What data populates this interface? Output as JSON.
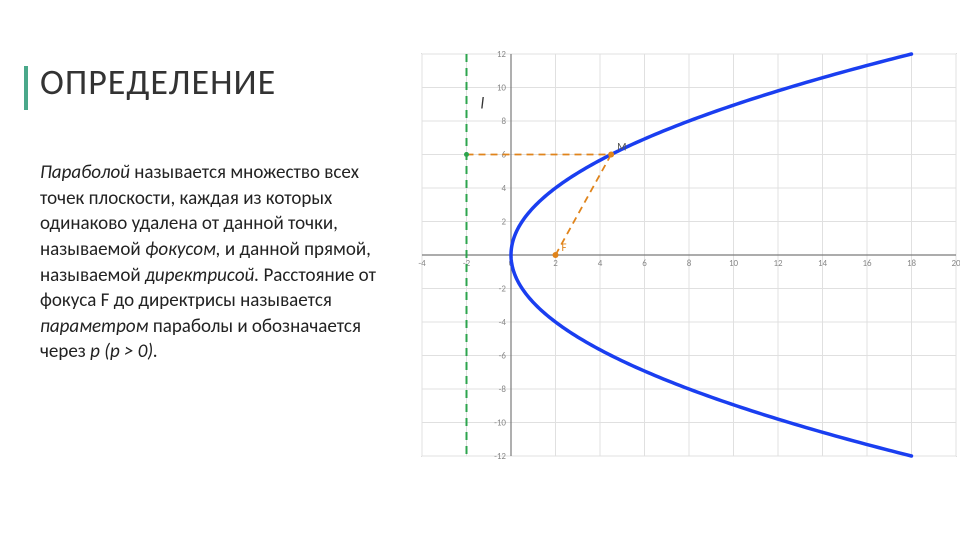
{
  "title": "ОПРЕДЕЛЕНИЕ",
  "paragraph": {
    "s1a": "Параболой",
    "s1b": " называется множество всех точек плоскости, каждая из которых одинаково удалена от данной точки, называемой ",
    "s1c": "фокусом,",
    "s1d": " и данной прямой, называемой ",
    "s1e": "директрисой.",
    "s2a": " Расстояние от фокуса F до директрисы называется ",
    "s2b": "параметром",
    "s2c": " параболы и обозначается через ",
    "s2d": "p (p > 0)."
  },
  "chart": {
    "type": "parabola",
    "xlim": [
      -4,
      20
    ],
    "ylim": [
      -12,
      12
    ],
    "xtick_step": 2,
    "ytick_step": 2,
    "axis_color": "#7a7a7a",
    "grid_color": "#e0e0e0",
    "curve_color": "#1a3ef0",
    "curve_width": 3.5,
    "directrix_color": "#2da44e",
    "directrix_dash": "8 6",
    "directrix_width": 2,
    "construction_color": "#e0841b",
    "construction_dash": "7 5",
    "construction_width": 1.8,
    "focus_label": "F",
    "focus_label_color": "#e0841b",
    "point_label": "M",
    "point_label_color": "#555",
    "directrix_label": "l",
    "directrix_label_color": "#333",
    "tick_font_size": 9,
    "tick_color": "#888",
    "background": "#ffffff",
    "parabola_p": 4,
    "focus": [
      2,
      0
    ],
    "directrix_x": -2,
    "sample_point": [
      4.5,
      6
    ],
    "sample_point_on_directrix": [
      -2,
      6
    ]
  }
}
